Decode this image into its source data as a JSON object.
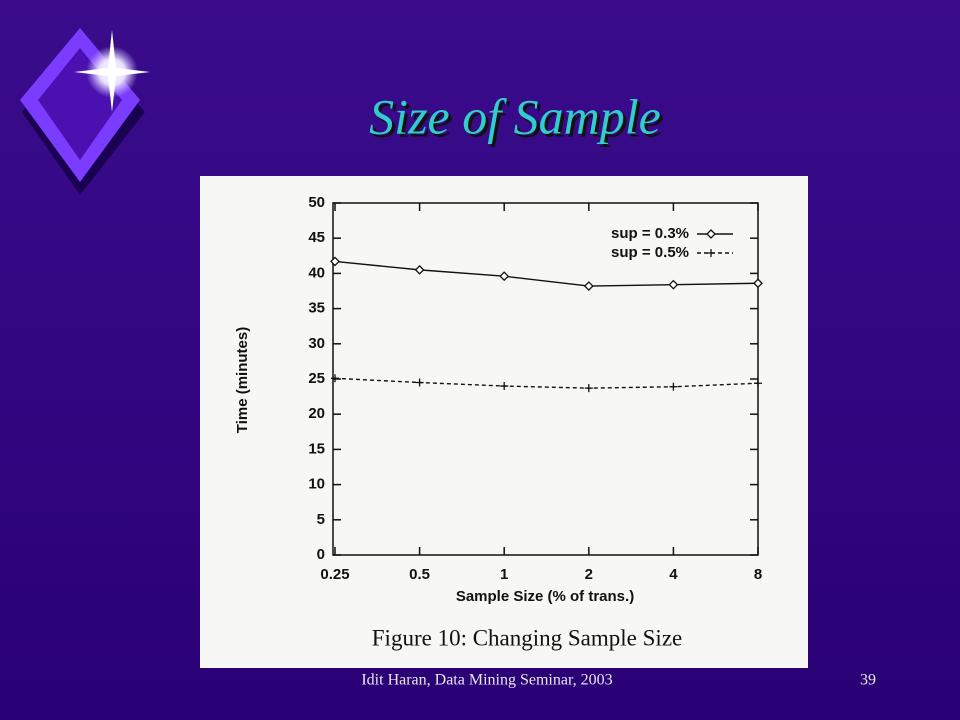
{
  "slide": {
    "title": "Size of Sample",
    "footer": "Idit Haran, Data Mining Seminar, 2003",
    "page_number": "39"
  },
  "chart_data": {
    "type": "line",
    "caption": "Figure 10: Changing Sample Size",
    "x_label": "Sample Size (% of trans.)",
    "y_label": "Time (minutes)",
    "categories": [
      "0.25",
      "0.5",
      "1",
      "2",
      "4",
      "8"
    ],
    "series": [
      {
        "name": "sup = 0.3%",
        "color": "#111111",
        "marker": "diamond",
        "dashed": false,
        "values": [
          41.7,
          40.5,
          39.6,
          38.2,
          38.4,
          38.6
        ]
      },
      {
        "name": "sup = 0.5%",
        "color": "#111111",
        "marker": "plus",
        "dashed": true,
        "values": [
          25.1,
          24.5,
          24.0,
          23.7,
          23.9,
          24.4
        ]
      }
    ],
    "ylim": [
      0,
      50
    ],
    "yticks": [
      0,
      5,
      10,
      15,
      20,
      25,
      30,
      35,
      40,
      45,
      50
    ],
    "legend": "top-right",
    "grid": false
  }
}
